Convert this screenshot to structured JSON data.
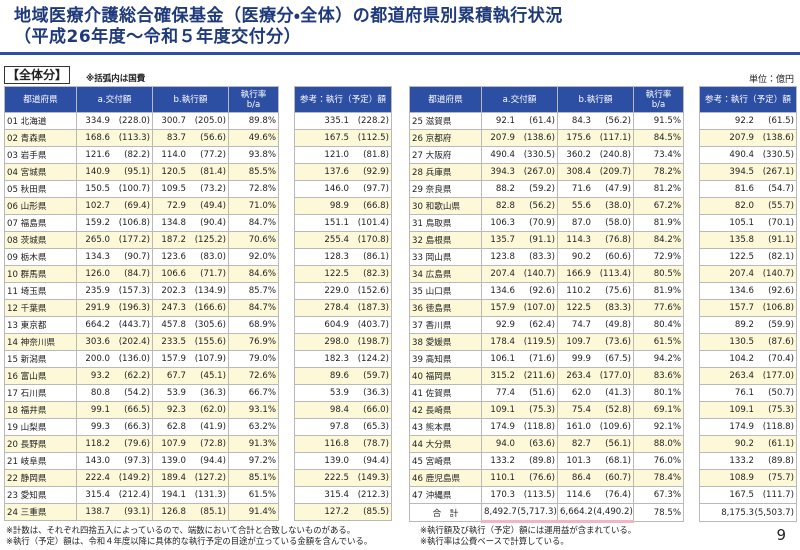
{
  "header": {
    "title_line1": "地域医療介護総合確保基金（医療分・全体）の都道府県別累積執行状況",
    "title_line2": "（平成26年度～令和５年度交付分）"
  },
  "section_label": "【全体分】",
  "note": "※括弧内は国費",
  "unit": "単位：億円",
  "columns": {
    "prefecture": "都道府県",
    "granted": "a.交付額",
    "executed": "b.執行額",
    "rate": "執行率",
    "rate_formula": "b/a",
    "reference": "参考：執行（予定）額"
  },
  "tables": [
    {
      "rows": [
        [
          "01 北海道",
          "334.9",
          "(228.0)",
          "300.7",
          "(205.0)",
          "89.8%",
          "335.1",
          "(228.2)"
        ],
        [
          "02 青森県",
          "168.6",
          "(113.3)",
          "83.7",
          "(56.6)",
          "49.6%",
          "167.5",
          "(112.5)"
        ],
        [
          "03 岩手県",
          "121.6",
          "(82.2)",
          "114.0",
          "(77.2)",
          "93.8%",
          "121.0",
          "(81.8)"
        ],
        [
          "04 宮城県",
          "140.9",
          "(95.1)",
          "120.5",
          "(81.4)",
          "85.5%",
          "137.6",
          "(92.9)"
        ],
        [
          "05 秋田県",
          "150.5",
          "(100.7)",
          "109.5",
          "(73.2)",
          "72.8%",
          "146.0",
          "(97.7)"
        ],
        [
          "06 山形県",
          "102.7",
          "(69.4)",
          "72.9",
          "(49.4)",
          "71.0%",
          "98.9",
          "(66.8)"
        ],
        [
          "07 福島県",
          "159.2",
          "(106.8)",
          "134.8",
          "(90.4)",
          "84.7%",
          "151.1",
          "(101.4)"
        ],
        [
          "08 茨城県",
          "265.0",
          "(177.2)",
          "187.2",
          "(125.2)",
          "70.6%",
          "255.4",
          "(170.8)"
        ],
        [
          "09 栃木県",
          "134.3",
          "(90.7)",
          "123.6",
          "(83.0)",
          "92.0%",
          "128.3",
          "(86.1)"
        ],
        [
          "10 群馬県",
          "126.0",
          "(84.7)",
          "106.6",
          "(71.7)",
          "84.6%",
          "122.5",
          "(82.3)"
        ],
        [
          "11 埼玉県",
          "235.9",
          "(157.3)",
          "202.3",
          "(134.9)",
          "85.7%",
          "229.0",
          "(152.6)"
        ],
        [
          "12 千葉県",
          "291.9",
          "(196.3)",
          "247.3",
          "(166.6)",
          "84.7%",
          "278.4",
          "(187.3)"
        ],
        [
          "13 東京都",
          "664.2",
          "(443.7)",
          "457.8",
          "(305.6)",
          "68.9%",
          "604.9",
          "(403.7)"
        ],
        [
          "14 神奈川県",
          "303.6",
          "(202.4)",
          "233.5",
          "(155.6)",
          "76.9%",
          "298.0",
          "(198.7)"
        ],
        [
          "15 新潟県",
          "200.0",
          "(136.0)",
          "157.9",
          "(107.9)",
          "79.0%",
          "182.3",
          "(124.2)"
        ],
        [
          "16 富山県",
          "93.2",
          "(62.2)",
          "67.7",
          "(45.1)",
          "72.6%",
          "89.6",
          "(59.7)"
        ],
        [
          "17 石川県",
          "80.8",
          "(54.2)",
          "53.9",
          "(36.3)",
          "66.7%",
          "53.9",
          "(36.3)"
        ],
        [
          "18 福井県",
          "99.1",
          "(66.5)",
          "92.3",
          "(62.0)",
          "93.1%",
          "98.4",
          "(66.0)"
        ],
        [
          "19 山梨県",
          "99.3",
          "(66.3)",
          "62.8",
          "(41.9)",
          "63.2%",
          "97.8",
          "(65.3)"
        ],
        [
          "20 長野県",
          "118.2",
          "(79.6)",
          "107.9",
          "(72.8)",
          "91.3%",
          "116.8",
          "(78.7)"
        ],
        [
          "21 岐阜県",
          "143.0",
          "(97.3)",
          "139.0",
          "(94.4)",
          "97.2%",
          "139.0",
          "(94.4)"
        ],
        [
          "22 静岡県",
          "222.4",
          "(149.2)",
          "189.4",
          "(127.2)",
          "85.1%",
          "222.5",
          "(149.3)"
        ],
        [
          "23 愛知県",
          "315.4",
          "(212.4)",
          "194.1",
          "(131.3)",
          "61.5%",
          "315.4",
          "(212.3)"
        ],
        [
          "24 三重県",
          "138.7",
          "(93.1)",
          "126.8",
          "(85.1)",
          "91.4%",
          "127.2",
          "(85.5)"
        ]
      ]
    },
    {
      "rows": [
        [
          "25 滋賀県",
          "92.1",
          "(61.4)",
          "84.3",
          "(56.2)",
          "91.5%",
          "92.2",
          "(61.5)"
        ],
        [
          "26 京都府",
          "207.9",
          "(138.6)",
          "175.6",
          "(117.1)",
          "84.5%",
          "207.9",
          "(138.6)"
        ],
        [
          "27 大阪府",
          "490.4",
          "(330.5)",
          "360.2",
          "(240.8)",
          "73.4%",
          "490.4",
          "(330.5)"
        ],
        [
          "28 兵庫県",
          "394.3",
          "(267.0)",
          "308.4",
          "(209.7)",
          "78.2%",
          "394.5",
          "(267.1)"
        ],
        [
          "29 奈良県",
          "88.2",
          "(59.2)",
          "71.6",
          "(47.9)",
          "81.2%",
          "81.6",
          "(54.7)"
        ],
        [
          "30 和歌山県",
          "82.8",
          "(56.2)",
          "55.6",
          "(38.0)",
          "67.2%",
          "82.0",
          "(55.7)"
        ],
        [
          "31 鳥取県",
          "106.3",
          "(70.9)",
          "87.0",
          "(58.0)",
          "81.9%",
          "105.1",
          "(70.1)"
        ],
        [
          "32 島根県",
          "135.7",
          "(91.1)",
          "114.3",
          "(76.8)",
          "84.2%",
          "135.8",
          "(91.1)"
        ],
        [
          "33 岡山県",
          "123.8",
          "(83.3)",
          "90.2",
          "(60.6)",
          "72.9%",
          "122.5",
          "(82.1)"
        ],
        [
          "34 広島県",
          "207.4",
          "(140.7)",
          "166.9",
          "(113.4)",
          "80.5%",
          "207.4",
          "(140.7)"
        ],
        [
          "35 山口県",
          "134.6",
          "(92.6)",
          "110.2",
          "(75.6)",
          "81.9%",
          "134.6",
          "(92.6)"
        ],
        [
          "36 徳島県",
          "157.9",
          "(107.0)",
          "122.5",
          "(83.3)",
          "77.6%",
          "157.7",
          "(106.8)"
        ],
        [
          "37 香川県",
          "92.9",
          "(62.4)",
          "74.7",
          "(49.8)",
          "80.4%",
          "89.2",
          "(59.9)"
        ],
        [
          "38 愛媛県",
          "178.4",
          "(119.5)",
          "109.7",
          "(73.6)",
          "61.5%",
          "130.5",
          "(87.6)"
        ],
        [
          "39 高知県",
          "106.1",
          "(71.6)",
          "99.9",
          "(67.5)",
          "94.2%",
          "104.2",
          "(70.4)"
        ],
        [
          "40 福岡県",
          "315.2",
          "(211.6)",
          "263.4",
          "(177.0)",
          "83.6%",
          "263.4",
          "(177.0)"
        ],
        [
          "41 佐賀県",
          "77.4",
          "(51.6)",
          "62.0",
          "(41.3)",
          "80.1%",
          "76.1",
          "(50.7)"
        ],
        [
          "42 長崎県",
          "109.1",
          "(75.3)",
          "75.4",
          "(52.8)",
          "69.1%",
          "109.1",
          "(75.3)"
        ],
        [
          "43 熊本県",
          "174.9",
          "(118.8)",
          "161.0",
          "(109.6)",
          "92.1%",
          "174.9",
          "(118.8)"
        ],
        [
          "44 大分県",
          "94.0",
          "(63.6)",
          "82.7",
          "(56.1)",
          "88.0%",
          "90.2",
          "(61.1)"
        ],
        [
          "45 宮崎県",
          "133.2",
          "(89.8)",
          "101.3",
          "(68.1)",
          "76.0%",
          "133.2",
          "(89.8)"
        ],
        [
          "46 鹿児島県",
          "110.1",
          "(76.6)",
          "86.4",
          "(60.7)",
          "78.4%",
          "108.9",
          "(75.7)"
        ],
        [
          "47 沖縄県",
          "170.3",
          "(113.5)",
          "114.6",
          "(76.4)",
          "67.3%",
          "167.5",
          "(111.7)"
        ],
        [
          "合　計",
          "8,492.7",
          "(5,717.3)",
          "6,664.2",
          "(4,490.2)",
          "78.5%",
          "8,175.3",
          "(5,503.7)"
        ]
      ]
    }
  ],
  "footnotes": [
    "※計数は、それぞれ四捨五入によっているので、端数において合計と合致しないものがある。",
    "※執行（予定）額は、令和４年度以降に具体的な執行予定の目途が立っている金額を含んでいる。",
    "※執行額及び執行（予定）額には運用益が含まれている。",
    "※執行率は公費ベースで計算している。"
  ],
  "page_number": "9"
}
